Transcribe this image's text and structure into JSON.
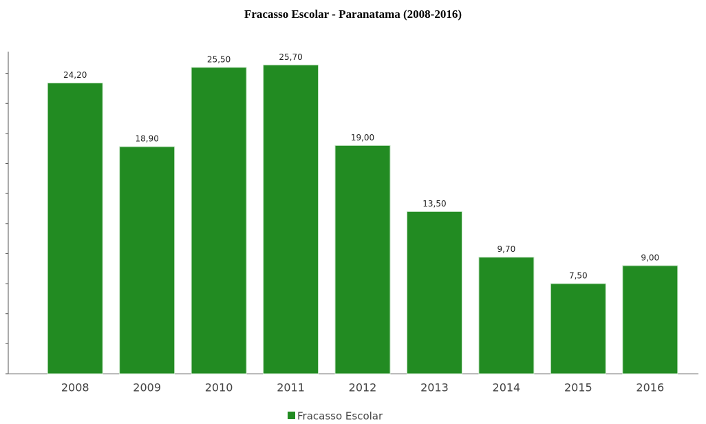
{
  "chart_data": {
    "type": "bar",
    "title": "Fracasso Escolar - Paranatama (2008-2016)",
    "categories": [
      "2008",
      "2009",
      "2010",
      "2011",
      "2012",
      "2013",
      "2014",
      "2015",
      "2016"
    ],
    "series": [
      {
        "name": "Fracasso Escolar",
        "color": "#228b22",
        "values": [
          24.2,
          18.9,
          25.5,
          25.7,
          19.0,
          13.5,
          9.7,
          7.5,
          9.0
        ],
        "value_labels": [
          "24,20",
          "18,90",
          "25,50",
          "25,70",
          "19,00",
          "13,50",
          "9,70",
          "7,50",
          "9,00"
        ]
      }
    ],
    "ylim": [
      0,
      27.5
    ],
    "yticks": [
      0,
      2.5,
      5,
      7.5,
      10,
      12.5,
      15,
      17.5,
      20,
      22.5,
      25,
      27.5
    ]
  }
}
